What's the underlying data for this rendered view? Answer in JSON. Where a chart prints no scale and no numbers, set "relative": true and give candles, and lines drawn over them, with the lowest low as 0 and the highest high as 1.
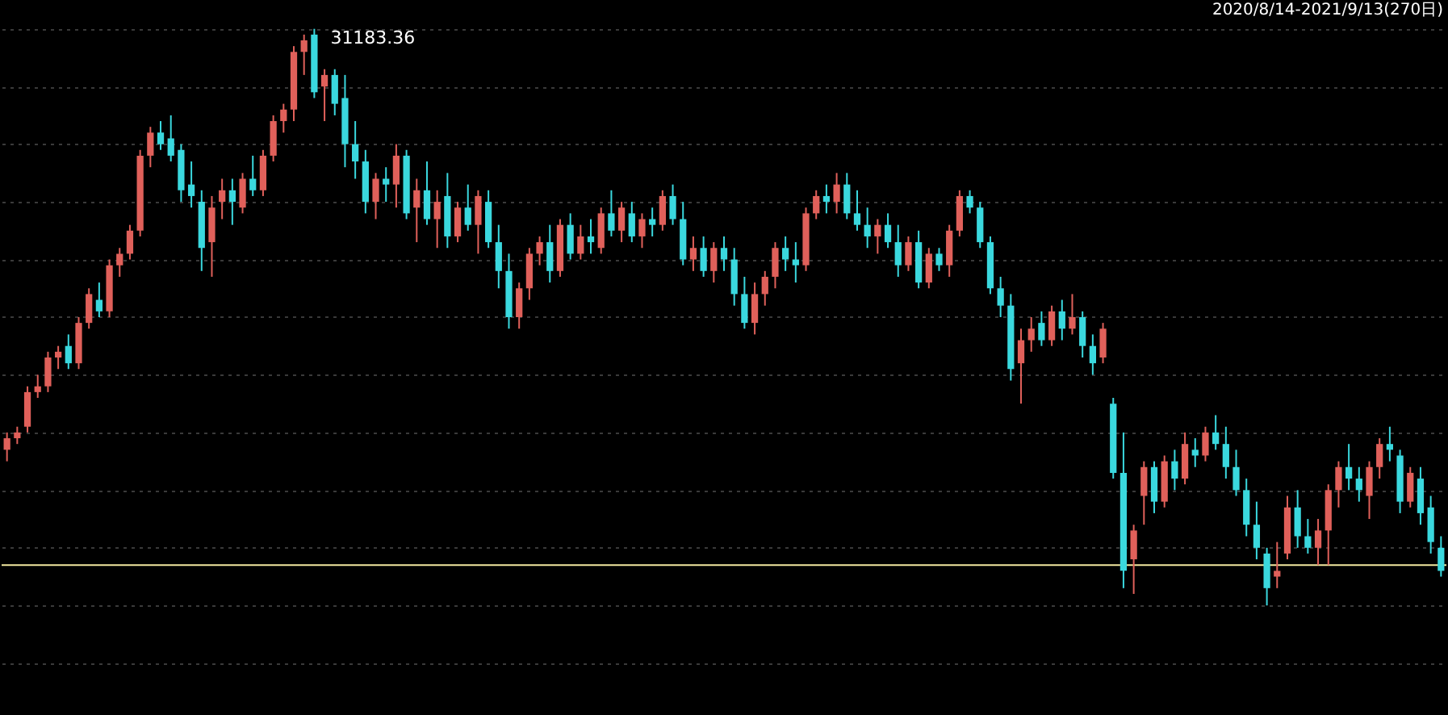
{
  "chart_data": {
    "type": "candlestick",
    "relative": true,
    "grid": "y",
    "categories": [
      null,
      null,
      null,
      null,
      null,
      null,
      null,
      null,
      null,
      null,
      null,
      null,
      null,
      null,
      null,
      null,
      null,
      null,
      null,
      null,
      null,
      null,
      null,
      null,
      null,
      null,
      null,
      null,
      null,
      null,
      null,
      null,
      null,
      null,
      null,
      null,
      null,
      null,
      null,
      null,
      null,
      null,
      null,
      null,
      null,
      null,
      null,
      null,
      null,
      null,
      null,
      null,
      null,
      null,
      null,
      null,
      null,
      null,
      null,
      null,
      null,
      null,
      null,
      null,
      null,
      null,
      null,
      null,
      null,
      null,
      null,
      null,
      null,
      null,
      null,
      null,
      null,
      null,
      null,
      null,
      null,
      null,
      null,
      null,
      null,
      null,
      null,
      null,
      null,
      null,
      null,
      null,
      null,
      null,
      null,
      null,
      null,
      null,
      null,
      null,
      null,
      null,
      null,
      null,
      null,
      null,
      null,
      null,
      null,
      null,
      null,
      null,
      null,
      null,
      null,
      null,
      null,
      null,
      null,
      null,
      null,
      null,
      null,
      null,
      null,
      null,
      null,
      null,
      null,
      null,
      null,
      null,
      null,
      null,
      null,
      null,
      null,
      null,
      null,
      null,
      null
    ],
    "ohlc": [
      [
        0.27,
        0.3,
        0.25,
        0.29
      ],
      [
        0.29,
        0.31,
        0.28,
        0.3
      ],
      [
        0.31,
        0.38,
        0.3,
        0.37
      ],
      [
        0.37,
        0.4,
        0.36,
        0.38
      ],
      [
        0.38,
        0.44,
        0.37,
        0.43
      ],
      [
        0.43,
        0.45,
        0.41,
        0.44
      ],
      [
        0.45,
        0.47,
        0.41,
        0.42
      ],
      [
        0.42,
        0.5,
        0.41,
        0.49
      ],
      [
        0.49,
        0.55,
        0.48,
        0.54
      ],
      [
        0.53,
        0.56,
        0.5,
        0.51
      ],
      [
        0.51,
        0.6,
        0.5,
        0.59
      ],
      [
        0.59,
        0.62,
        0.57,
        0.61
      ],
      [
        0.61,
        0.66,
        0.6,
        0.65
      ],
      [
        0.65,
        0.79,
        0.64,
        0.78
      ],
      [
        0.78,
        0.83,
        0.76,
        0.82
      ],
      [
        0.82,
        0.84,
        0.79,
        0.8
      ],
      [
        0.81,
        0.85,
        0.77,
        0.78
      ],
      [
        0.79,
        0.8,
        0.7,
        0.72
      ],
      [
        0.73,
        0.77,
        0.69,
        0.71
      ],
      [
        0.7,
        0.72,
        0.58,
        0.62
      ],
      [
        0.63,
        0.71,
        0.57,
        0.69
      ],
      [
        0.7,
        0.74,
        0.67,
        0.72
      ],
      [
        0.72,
        0.74,
        0.66,
        0.7
      ],
      [
        0.69,
        0.75,
        0.68,
        0.74
      ],
      [
        0.74,
        0.78,
        0.71,
        0.72
      ],
      [
        0.72,
        0.79,
        0.71,
        0.78
      ],
      [
        0.78,
        0.85,
        0.77,
        0.84
      ],
      [
        0.84,
        0.87,
        0.82,
        0.86
      ],
      [
        0.86,
        0.97,
        0.84,
        0.96
      ],
      [
        0.96,
        0.99,
        0.92,
        0.98
      ],
      [
        0.99,
        1.0,
        0.88,
        0.89
      ],
      [
        0.9,
        0.93,
        0.84,
        0.92
      ],
      [
        0.92,
        0.93,
        0.85,
        0.87
      ],
      [
        0.88,
        0.92,
        0.76,
        0.8
      ],
      [
        0.8,
        0.84,
        0.74,
        0.77
      ],
      [
        0.77,
        0.79,
        0.68,
        0.7
      ],
      [
        0.7,
        0.75,
        0.67,
        0.74
      ],
      [
        0.74,
        0.76,
        0.7,
        0.73
      ],
      [
        0.73,
        0.8,
        0.69,
        0.78
      ],
      [
        0.78,
        0.79,
        0.67,
        0.68
      ],
      [
        0.69,
        0.74,
        0.63,
        0.72
      ],
      [
        0.72,
        0.77,
        0.66,
        0.67
      ],
      [
        0.67,
        0.72,
        0.62,
        0.7
      ],
      [
        0.71,
        0.75,
        0.62,
        0.64
      ],
      [
        0.64,
        0.7,
        0.63,
        0.69
      ],
      [
        0.69,
        0.73,
        0.65,
        0.66
      ],
      [
        0.66,
        0.72,
        0.61,
        0.71
      ],
      [
        0.7,
        0.72,
        0.62,
        0.63
      ],
      [
        0.63,
        0.66,
        0.55,
        0.58
      ],
      [
        0.58,
        0.61,
        0.48,
        0.5
      ],
      [
        0.5,
        0.56,
        0.48,
        0.55
      ],
      [
        0.55,
        0.62,
        0.53,
        0.61
      ],
      [
        0.61,
        0.64,
        0.59,
        0.63
      ],
      [
        0.63,
        0.66,
        0.56,
        0.58
      ],
      [
        0.58,
        0.67,
        0.57,
        0.66
      ],
      [
        0.66,
        0.68,
        0.6,
        0.61
      ],
      [
        0.61,
        0.66,
        0.6,
        0.64
      ],
      [
        0.64,
        0.67,
        0.61,
        0.63
      ],
      [
        0.62,
        0.69,
        0.61,
        0.68
      ],
      [
        0.68,
        0.72,
        0.64,
        0.65
      ],
      [
        0.65,
        0.7,
        0.63,
        0.69
      ],
      [
        0.68,
        0.7,
        0.63,
        0.64
      ],
      [
        0.64,
        0.68,
        0.62,
        0.67
      ],
      [
        0.67,
        0.69,
        0.64,
        0.66
      ],
      [
        0.66,
        0.72,
        0.65,
        0.71
      ],
      [
        0.71,
        0.73,
        0.66,
        0.67
      ],
      [
        0.67,
        0.7,
        0.59,
        0.6
      ],
      [
        0.6,
        0.64,
        0.58,
        0.62
      ],
      [
        0.62,
        0.64,
        0.57,
        0.58
      ],
      [
        0.58,
        0.63,
        0.56,
        0.62
      ],
      [
        0.62,
        0.64,
        0.58,
        0.6
      ],
      [
        0.6,
        0.62,
        0.52,
        0.54
      ],
      [
        0.54,
        0.57,
        0.48,
        0.49
      ],
      [
        0.49,
        0.56,
        0.47,
        0.54
      ],
      [
        0.54,
        0.58,
        0.52,
        0.57
      ],
      [
        0.57,
        0.63,
        0.55,
        0.62
      ],
      [
        0.62,
        0.64,
        0.58,
        0.6
      ],
      [
        0.6,
        0.63,
        0.56,
        0.59
      ],
      [
        0.59,
        0.69,
        0.58,
        0.68
      ],
      [
        0.68,
        0.72,
        0.67,
        0.71
      ],
      [
        0.71,
        0.73,
        0.68,
        0.7
      ],
      [
        0.7,
        0.75,
        0.68,
        0.73
      ],
      [
        0.73,
        0.75,
        0.67,
        0.68
      ],
      [
        0.68,
        0.72,
        0.65,
        0.66
      ],
      [
        0.66,
        0.69,
        0.62,
        0.64
      ],
      [
        0.64,
        0.67,
        0.61,
        0.66
      ],
      [
        0.66,
        0.68,
        0.62,
        0.63
      ],
      [
        0.63,
        0.66,
        0.57,
        0.59
      ],
      [
        0.59,
        0.64,
        0.58,
        0.63
      ],
      [
        0.63,
        0.65,
        0.55,
        0.56
      ],
      [
        0.56,
        0.62,
        0.55,
        0.61
      ],
      [
        0.61,
        0.62,
        0.58,
        0.59
      ],
      [
        0.59,
        0.66,
        0.57,
        0.65
      ],
      [
        0.65,
        0.72,
        0.64,
        0.71
      ],
      [
        0.71,
        0.72,
        0.68,
        0.69
      ],
      [
        0.69,
        0.7,
        0.62,
        0.63
      ],
      [
        0.63,
        0.64,
        0.54,
        0.55
      ],
      [
        0.55,
        0.57,
        0.5,
        0.52
      ],
      [
        0.52,
        0.54,
        0.39,
        0.41
      ],
      [
        0.42,
        0.48,
        0.35,
        0.46
      ],
      [
        0.46,
        0.5,
        0.44,
        0.48
      ],
      [
        0.49,
        0.51,
        0.45,
        0.46
      ],
      [
        0.46,
        0.52,
        0.45,
        0.51
      ],
      [
        0.51,
        0.53,
        0.46,
        0.48
      ],
      [
        0.48,
        0.54,
        0.47,
        0.5
      ],
      [
        0.5,
        0.51,
        0.43,
        0.45
      ],
      [
        0.45,
        0.47,
        0.4,
        0.42
      ],
      [
        0.43,
        0.49,
        0.42,
        0.48
      ],
      [
        0.35,
        0.36,
        0.22,
        0.23
      ],
      [
        0.23,
        0.3,
        0.03,
        0.06
      ],
      [
        0.08,
        0.14,
        0.02,
        0.13
      ],
      [
        0.19,
        0.25,
        0.14,
        0.24
      ],
      [
        0.24,
        0.25,
        0.16,
        0.18
      ],
      [
        0.18,
        0.26,
        0.17,
        0.25
      ],
      [
        0.25,
        0.27,
        0.2,
        0.22
      ],
      [
        0.22,
        0.3,
        0.21,
        0.28
      ],
      [
        0.27,
        0.29,
        0.24,
        0.26
      ],
      [
        0.26,
        0.31,
        0.25,
        0.3
      ],
      [
        0.3,
        0.33,
        0.27,
        0.28
      ],
      [
        0.28,
        0.31,
        0.22,
        0.24
      ],
      [
        0.24,
        0.27,
        0.19,
        0.2
      ],
      [
        0.2,
        0.22,
        0.12,
        0.14
      ],
      [
        0.14,
        0.18,
        0.08,
        0.1
      ],
      [
        0.09,
        0.1,
        0.0,
        0.03
      ],
      [
        0.05,
        0.11,
        0.03,
        0.06
      ],
      [
        0.09,
        0.19,
        0.08,
        0.17
      ],
      [
        0.17,
        0.2,
        0.1,
        0.12
      ],
      [
        0.12,
        0.15,
        0.09,
        0.1
      ],
      [
        0.1,
        0.15,
        0.07,
        0.13
      ],
      [
        0.13,
        0.21,
        0.07,
        0.2
      ],
      [
        0.2,
        0.25,
        0.17,
        0.24
      ],
      [
        0.24,
        0.28,
        0.2,
        0.22
      ],
      [
        0.22,
        0.24,
        0.18,
        0.2
      ],
      [
        0.19,
        0.25,
        0.15,
        0.24
      ],
      [
        0.24,
        0.29,
        0.22,
        0.28
      ],
      [
        0.28,
        0.31,
        0.25,
        0.27
      ],
      [
        0.26,
        0.27,
        0.16,
        0.18
      ],
      [
        0.18,
        0.24,
        0.17,
        0.23
      ],
      [
        0.22,
        0.24,
        0.14,
        0.16
      ],
      [
        0.17,
        0.19,
        0.09,
        0.11
      ],
      [
        0.1,
        0.12,
        0.05,
        0.06
      ]
    ],
    "colors": [
      "#e0605a",
      "#e0605a",
      "#e0605a",
      "#e0605a",
      "#e0605a",
      "#e0605a",
      "#3ad8de",
      "#e0605a",
      "#e0605a",
      "#3ad8de",
      "#e0605a",
      "#e0605a",
      "#e0605a",
      "#e0605a",
      "#e0605a",
      "#3ad8de",
      "#3ad8de",
      "#3ad8de",
      "#3ad8de",
      "#3ad8de",
      "#e0605a",
      "#e0605a",
      "#3ad8de",
      "#e0605a",
      "#3ad8de",
      "#e0605a",
      "#e0605a",
      "#e0605a",
      "#e0605a",
      "#e0605a",
      "#3ad8de",
      "#e0605a",
      "#3ad8de",
      "#3ad8de",
      "#3ad8de",
      "#3ad8de",
      "#e0605a",
      "#3ad8de",
      "#e0605a",
      "#3ad8de",
      "#e0605a",
      "#3ad8de",
      "#e0605a",
      "#3ad8de",
      "#e0605a",
      "#3ad8de",
      "#e0605a",
      "#3ad8de",
      "#3ad8de",
      "#3ad8de",
      "#e0605a",
      "#e0605a",
      "#e0605a",
      "#3ad8de",
      "#e0605a",
      "#3ad8de",
      "#e0605a",
      "#3ad8de",
      "#e0605a",
      "#3ad8de",
      "#e0605a",
      "#3ad8de",
      "#e0605a",
      "#3ad8de",
      "#e0605a",
      "#3ad8de",
      "#3ad8de",
      "#e0605a",
      "#3ad8de",
      "#e0605a",
      "#3ad8de",
      "#3ad8de",
      "#3ad8de",
      "#e0605a",
      "#e0605a",
      "#e0605a",
      "#3ad8de",
      "#3ad8de",
      "#e0605a",
      "#e0605a",
      "#3ad8de",
      "#e0605a",
      "#3ad8de",
      "#3ad8de",
      "#3ad8de",
      "#e0605a",
      "#3ad8de",
      "#3ad8de",
      "#e0605a",
      "#3ad8de",
      "#e0605a",
      "#3ad8de",
      "#e0605a",
      "#e0605a",
      "#3ad8de",
      "#3ad8de",
      "#3ad8de",
      "#3ad8de",
      "#3ad8de",
      "#e0605a",
      "#e0605a",
      "#3ad8de",
      "#e0605a",
      "#3ad8de",
      "#e0605a",
      "#3ad8de",
      "#3ad8de",
      "#e0605a",
      "#3ad8de",
      "#3ad8de",
      "#e0605a",
      "#e0605a",
      "#3ad8de",
      "#e0605a",
      "#3ad8de",
      "#e0605a",
      "#3ad8de",
      "#e0605a",
      "#3ad8de",
      "#3ad8de",
      "#3ad8de",
      "#3ad8de",
      "#3ad8de",
      "#3ad8de",
      "#e0605a",
      "#e0605a",
      "#3ad8de",
      "#3ad8de",
      "#e0605a",
      "#e0605a",
      "#e0605a",
      "#3ad8de",
      "#3ad8de",
      "#e0605a",
      "#e0605a",
      "#3ad8de",
      "#3ad8de",
      "#e0605a",
      "#3ad8de",
      "#3ad8de",
      "#3ad8de"
    ],
    "ref_lines": [
      {
        "axis": "y",
        "value": 0.07,
        "color": "#f3e9a0",
        "line_style": "solid"
      }
    ],
    "annotations": [
      "31183.36",
      "2020/8/14-2021/9/13(270日)"
    ]
  }
}
